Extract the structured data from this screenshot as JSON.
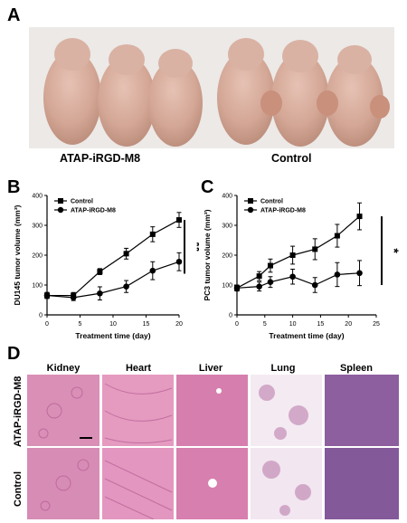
{
  "panels": {
    "A": "A",
    "B": "B",
    "C": "C",
    "D": "D"
  },
  "photo": {
    "group_left_label": "ATAP-iRGD-M8",
    "group_right_label": "Control"
  },
  "chart_data": [
    {
      "type": "line",
      "title": "",
      "xlabel": "Treatment time (day)",
      "ylabel": "DU145 tumor volume (mm³)",
      "xlim": [
        0,
        20
      ],
      "ylim": [
        0,
        400
      ],
      "x_ticks": [
        0,
        5,
        10,
        15,
        20
      ],
      "y_ticks": [
        0,
        100,
        200,
        300,
        400
      ],
      "legend_position": "top-left",
      "grid": false,
      "significance": "**",
      "series": [
        {
          "name": "Control",
          "marker": "square",
          "x": [
            0,
            4,
            8,
            12,
            16,
            20
          ],
          "y": [
            65,
            65,
            145,
            205,
            270,
            318
          ],
          "err": [
            10,
            10,
            10,
            18,
            25,
            25
          ]
        },
        {
          "name": "ATAP-iRGD-M8",
          "marker": "circle",
          "x": [
            0,
            4,
            8,
            12,
            16,
            20
          ],
          "y": [
            65,
            58,
            72,
            95,
            148,
            178
          ],
          "err": [
            10,
            10,
            22,
            20,
            30,
            30
          ]
        }
      ]
    },
    {
      "type": "line",
      "title": "",
      "xlabel": "Treatment time (day)",
      "ylabel": "PC3 tumor volume (mm³)",
      "xlim": [
        0,
        25
      ],
      "ylim": [
        0,
        400
      ],
      "x_ticks": [
        0,
        5,
        10,
        15,
        20,
        25
      ],
      "y_ticks": [
        0,
        100,
        200,
        300,
        400
      ],
      "legend_position": "top-left",
      "grid": false,
      "significance": "*",
      "series": [
        {
          "name": "Control",
          "marker": "square",
          "x": [
            0,
            4,
            6,
            10,
            14,
            18,
            22
          ],
          "y": [
            90,
            130,
            165,
            200,
            220,
            265,
            330
          ],
          "err": [
            10,
            15,
            22,
            30,
            35,
            38,
            45
          ]
        },
        {
          "name": "ATAP-iRGD-M8",
          "marker": "circle",
          "x": [
            0,
            4,
            6,
            10,
            14,
            18,
            22
          ],
          "y": [
            90,
            95,
            110,
            128,
            100,
            135,
            140
          ],
          "err": [
            10,
            15,
            18,
            25,
            25,
            40,
            42
          ]
        }
      ]
    }
  ],
  "histology": {
    "columns": [
      "Kidney",
      "Heart",
      "Liver",
      "Lung",
      "Spleen"
    ],
    "rows": [
      "ATAP-iRGD-M8",
      "Control"
    ]
  }
}
